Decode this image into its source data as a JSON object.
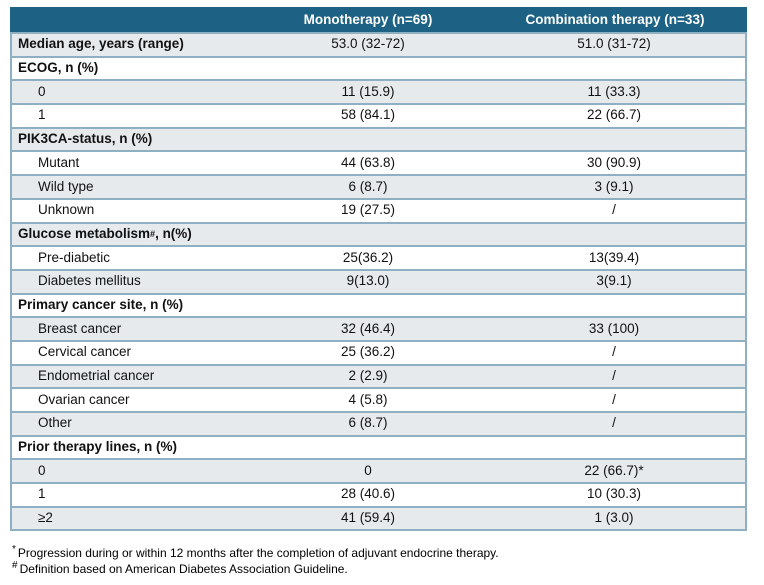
{
  "colors": {
    "header_bg": "#1D6284",
    "header_text": "#FFFFFF",
    "border": "#8FAFC3",
    "row_alt": "#E7EAED",
    "row_white": "#FFFFFF"
  },
  "table": {
    "columns": [
      "",
      "Monotherapy (n=69)",
      "Combination therapy (n=33)"
    ],
    "rows": [
      {
        "type": "toplevel",
        "label": "Median age, years (range)",
        "mono": "53.0 (32-72)",
        "combo": "51.0 (31-72)"
      },
      {
        "type": "section",
        "label": "ECOG, n (%)"
      },
      {
        "type": "stat",
        "label": "0",
        "mono": "11 (15.9)",
        "combo": "11 (33.3)"
      },
      {
        "type": "stat",
        "label": "1",
        "mono": "58 (84.1)",
        "combo": "22 (66.7)"
      },
      {
        "type": "section",
        "label": "PIK3CA-status, n (%)"
      },
      {
        "type": "stat",
        "label": "Mutant",
        "mono": "44 (63.8)",
        "combo": "30 (90.9)"
      },
      {
        "type": "stat",
        "label": "Wild type",
        "mono": "6 (8.7)",
        "combo": "3 (9.1)"
      },
      {
        "type": "stat",
        "label": "Unknown",
        "mono": "19 (27.5)",
        "combo": "/"
      },
      {
        "type": "section",
        "label": "Glucose metabolism",
        "sup": "#",
        "suffix": ", n(%)"
      },
      {
        "type": "stat",
        "label": "Pre-diabetic",
        "mono": "25(36.2)",
        "combo": "13(39.4)"
      },
      {
        "type": "stat",
        "label": "Diabetes mellitus",
        "mono": "9(13.0)",
        "combo": "3(9.1)"
      },
      {
        "type": "section",
        "label": "Primary cancer site, n (%)"
      },
      {
        "type": "stat",
        "label": "Breast cancer",
        "mono": "32 (46.4)",
        "combo": "33 (100)"
      },
      {
        "type": "stat",
        "label": "Cervical cancer",
        "mono": "25 (36.2)",
        "combo": "/"
      },
      {
        "type": "stat",
        "label": "Endometrial cancer",
        "mono": "2 (2.9)",
        "combo": "/"
      },
      {
        "type": "stat",
        "label": "Ovarian cancer",
        "mono": "4 (5.8)",
        "combo": "/"
      },
      {
        "type": "stat",
        "label": "Other",
        "mono": "6 (8.7)",
        "combo": "/"
      },
      {
        "type": "section",
        "label": "Prior therapy lines, n (%)"
      },
      {
        "type": "stat",
        "label": "0",
        "mono": "0",
        "combo": "22 (66.7)*"
      },
      {
        "type": "stat",
        "label": "1",
        "mono": "28 (40.6)",
        "combo": "10 (30.3)"
      },
      {
        "type": "stat",
        "label": "≥2",
        "mono": "41 (59.4)",
        "combo": "1 (3.0)"
      }
    ]
  },
  "footnotes": [
    {
      "marker": "*",
      "text": "Progression during or within 12 months after the completion of adjuvant endocrine therapy."
    },
    {
      "marker": "#",
      "text": "Definition based on  American Diabetes Association Guideline."
    }
  ]
}
